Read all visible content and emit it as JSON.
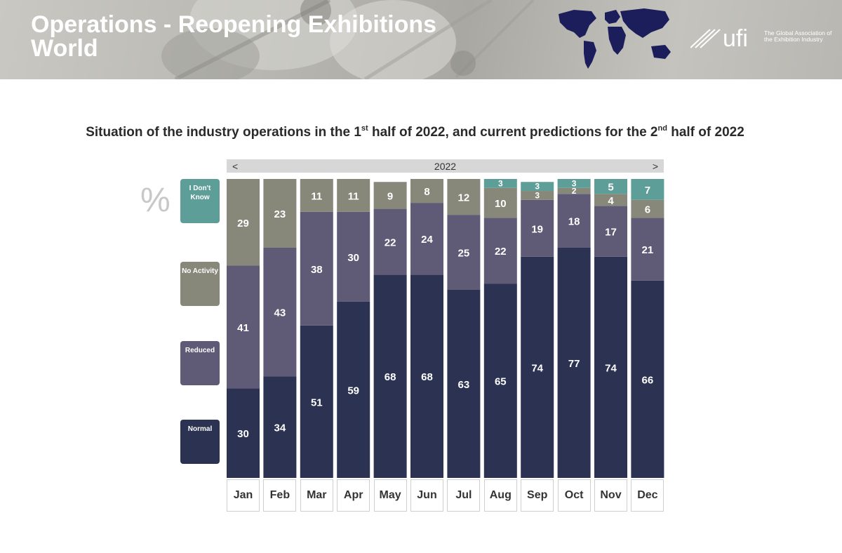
{
  "header": {
    "title": "Operations - Reopening Exhibitions World",
    "logo_text": "ufi",
    "logo_tagline": "The Global Association of the Exhibition Industry"
  },
  "subtitle": {
    "part1": "Situation of the industry operations in the 1",
    "sup1": "st",
    "part2": " half of 2022, and current predictions for the 2",
    "sup2": "nd",
    "part3": " half of 2022"
  },
  "nav": {
    "year": "2022",
    "prev": "<",
    "next": ">"
  },
  "unit": "%",
  "legend": [
    {
      "label": "I Don't Know",
      "color": "#5e9e98"
    },
    {
      "label": "No Activity",
      "color": "#87877a"
    },
    {
      "label": "Reduced",
      "color": "#5f5b77"
    },
    {
      "label": "Normal",
      "color": "#2b3252"
    }
  ],
  "chart_data": {
    "type": "bar",
    "stacked": true,
    "categories": [
      "Jan",
      "Feb",
      "Mar",
      "Apr",
      "May",
      "Jun",
      "Jul",
      "Aug",
      "Sep",
      "Oct",
      "Nov",
      "Dec"
    ],
    "series": [
      {
        "name": "Normal",
        "color": "#2b3252",
        "values": [
          30,
          34,
          51,
          59,
          68,
          68,
          63,
          65,
          74,
          77,
          74,
          66
        ]
      },
      {
        "name": "Reduced",
        "color": "#5f5b77",
        "values": [
          41,
          43,
          38,
          30,
          22,
          24,
          25,
          22,
          19,
          18,
          17,
          21
        ]
      },
      {
        "name": "No Activity",
        "color": "#87877a",
        "values": [
          29,
          23,
          11,
          11,
          9,
          8,
          12,
          10,
          3,
          2,
          4,
          6
        ]
      },
      {
        "name": "I Don't Know",
        "color": "#5e9e98",
        "values": [
          0,
          0,
          0,
          0,
          0,
          0,
          0,
          3,
          3,
          3,
          5,
          7
        ]
      }
    ],
    "ylim": [
      0,
      100
    ],
    "grid": false
  }
}
